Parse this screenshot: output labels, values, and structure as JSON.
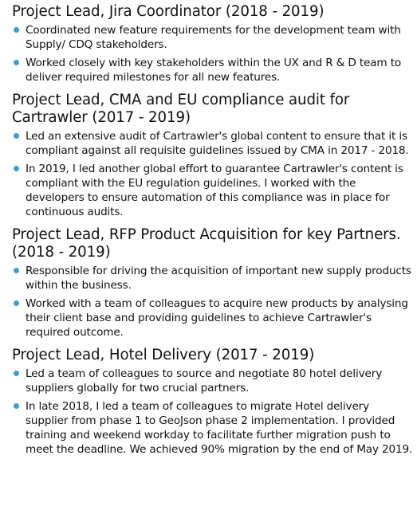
{
  "colors": {
    "bullet": "#3aa0c8",
    "text": "#111111"
  },
  "sections": [
    {
      "title": "Project Lead, Jira Coordinator (2018 - 2019)",
      "bullets": [
        "Coordinated new feature requirements for the development team with Supply/ CDQ stakeholders.",
        "Worked closely with key stakeholders within the UX and R & D team to deliver required milestones for all new features."
      ]
    },
    {
      "title": "Project Lead, CMA and EU compliance audit for Cartrawler (2017 - 2019)",
      "bullets": [
        "Led an extensive audit of Cartrawler's global content to ensure that it is compliant against all requisite guidelines issued by CMA in 2017 - 2018.",
        "In 2019, I led another global effort to guarantee Cartrawler's content is compliant with the EU regulation guidelines. I worked with the developers to ensure automation of this compliance was in place for continuous audits."
      ]
    },
    {
      "title": "Project Lead, RFP Product Acquisition for key Partners. (2018 - 2019)",
      "bullets": [
        "Responsible for driving the acquisition of important new supply products within the business.",
        "Worked with a team of colleagues to acquire new products by analysing their client base and providing guidelines to achieve Cartrawler's required outcome."
      ]
    },
    {
      "title": "Project Lead, Hotel Delivery (2017 - 2019)",
      "bullets": [
        "Led a team of colleagues to source and negotiate 80 hotel delivery suppliers globally for two crucial partners.",
        "In late 2018, I led a team of colleagues to migrate Hotel delivery supplier from phase 1 to GeoJson phase 2 implementation. I provided training and weekend workday to facilitate further migration push to meet the deadline. We achieved 90% migration by the end of May 2019."
      ]
    }
  ]
}
